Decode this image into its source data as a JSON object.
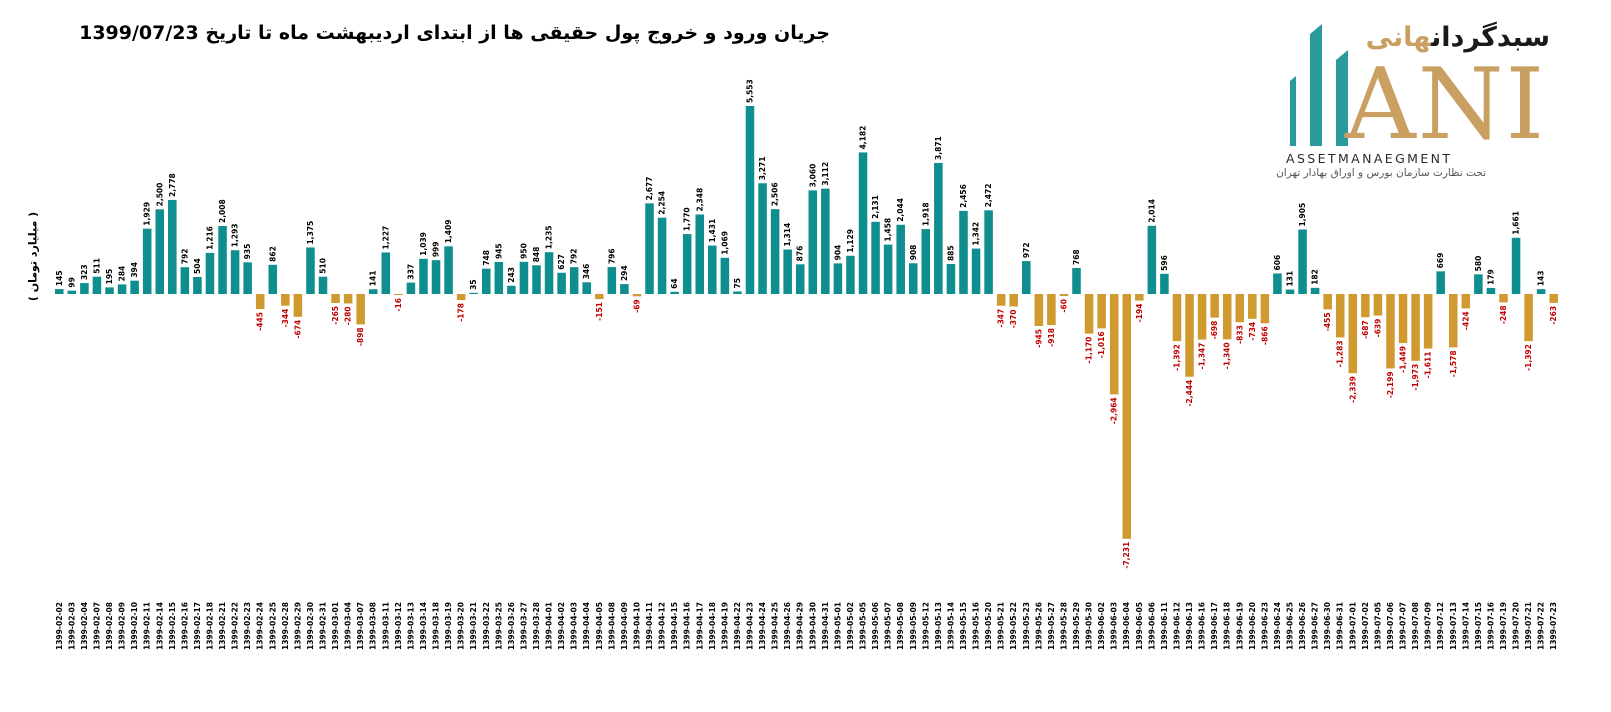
{
  "logo": {
    "brand_fa_part1": "سبدگردان",
    "brand_fa_part2": "هانی",
    "brand_en": "ANI",
    "tagline": "ASSETMANAEGMENT",
    "subtext": "تحت نظارت سازمان بورس و اوراق بهادار تهران",
    "colors": {
      "teal": "#2a9a9c",
      "gold": "#c9a062"
    }
  },
  "chart_data": {
    "type": "bar",
    "title": "جریان ورود و خروج پول حقیقی ها از ابتدای اردیبهشت ماه تا تاریخ 1399/07/23",
    "ylabel": "( میلیارد تومان )",
    "xlabel": "",
    "ylim": [
      -8000,
      6000
    ],
    "grid": false,
    "colors": {
      "positive": "#0e8e8e",
      "negative": "#d09a30",
      "label_positive": "#000000",
      "label_negative": "#c00000"
    },
    "categories": [
      "1399-02-02",
      "1399-02-03",
      "1399-02-04",
      "1399-02-07",
      "1399-02-08",
      "1399-02-09",
      "1399-02-10",
      "1399-02-11",
      "1399-02-14",
      "1399-02-15",
      "1399-02-16",
      "1399-02-17",
      "1399-02-18",
      "1399-02-21",
      "1399-02-22",
      "1399-02-23",
      "1399-02-24",
      "1399-02-25",
      "1399-02-28",
      "1399-02-29",
      "1399-02-30",
      "1399-02-31",
      "1399-03-01",
      "1399-03-04",
      "1399-03-07",
      "1399-03-08",
      "1399-03-11",
      "1399-03-12",
      "1399-03-13",
      "1399-03-14",
      "1399-03-18",
      "1399-03-19",
      "1399-03-20",
      "1399-03-21",
      "1399-03-22",
      "1399-03-25",
      "1399-03-26",
      "1399-03-27",
      "1399-03-28",
      "1399-04-01",
      "1399-04-02",
      "1399-04-03",
      "1399-04-04",
      "1399-04-05",
      "1399-04-08",
      "1399-04-09",
      "1399-04-10",
      "1399-04-11",
      "1399-04-12",
      "1399-04-15",
      "1399-04-16",
      "1399-04-17",
      "1399-04-18",
      "1399-04-19",
      "1399-04-22",
      "1399-04-23",
      "1399-04-24",
      "1399-04-25",
      "1399-04-26",
      "1399-04-29",
      "1399-04-30",
      "1399-04-31",
      "1399-05-01",
      "1399-05-02",
      "1399-05-05",
      "1399-05-06",
      "1399-05-07",
      "1399-05-08",
      "1399-05-09",
      "1399-05-12",
      "1399-05-13",
      "1399-05-14",
      "1399-05-15",
      "1399-05-16",
      "1399-05-20",
      "1399-05-21",
      "1399-05-22",
      "1399-05-23",
      "1399-05-26",
      "1399-05-27",
      "1399-05-28",
      "1399-05-29",
      "1399-05-30",
      "1399-06-02",
      "1399-06-03",
      "1399-06-04",
      "1399-06-05",
      "1399-06-06",
      "1399-06-11",
      "1399-06-12",
      "1399-06-13",
      "1399-06-16",
      "1399-06-17",
      "1399-06-18",
      "1399-06-19",
      "1399-06-20",
      "1399-06-23",
      "1399-06-24",
      "1399-06-25",
      "1399-06-26",
      "1399-06-27",
      "1399-06-30",
      "1399-06-31",
      "1399-07-01",
      "1399-07-02",
      "1399-07-05",
      "1399-07-06",
      "1399-07-07",
      "1399-07-08",
      "1399-07-09",
      "1399-07-12",
      "1399-07-13",
      "1399-07-14",
      "1399-07-15",
      "1399-07-16",
      "1399-07-19",
      "1399-07-20",
      "1399-07-21",
      "1399-07-22",
      "1399-07-23"
    ],
    "values": [
      145,
      99,
      323,
      511,
      195,
      284,
      394,
      1929,
      2500,
      2778,
      792,
      504,
      1216,
      2008,
      1293,
      935,
      -445,
      862,
      -344,
      -674,
      1375,
      510,
      -265,
      -280,
      -898,
      141,
      1227,
      -16,
      337,
      1039,
      999,
      1409,
      -178,
      35,
      748,
      945,
      243,
      950,
      848,
      1235,
      627,
      792,
      346,
      -151,
      796,
      294,
      -69,
      2677,
      2254,
      64,
      1770,
      2348,
      1431,
      1069,
      75,
      5553,
      3271,
      2506,
      1314,
      876,
      3060,
      3112,
      904,
      1129,
      4182,
      2131,
      1458,
      2044,
      908,
      1918,
      3871,
      885,
      2456,
      1342,
      2472,
      -347,
      -370,
      972,
      -945,
      -918,
      -60,
      768,
      -1170,
      -1016,
      -2964,
      -7231,
      -194,
      2014,
      596,
      -1392,
      -2444,
      -1347,
      -698,
      -1340,
      -833,
      -734,
      -866,
      606,
      131,
      1905,
      182,
      -455,
      -1283,
      -2339,
      -687,
      -639,
      -2199,
      -1449,
      -1973,
      -1611,
      669,
      -1578,
      -424,
      580,
      179,
      -248,
      1661,
      -1392,
      143,
      -263
    ]
  }
}
